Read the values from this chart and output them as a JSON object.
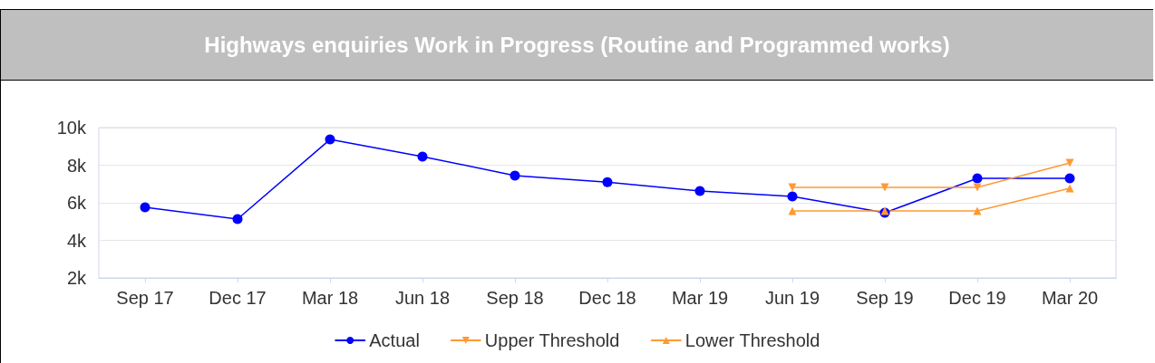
{
  "chart_data": {
    "type": "line",
    "title": "Highways enquiries Work in Progress (Routine and Programmed works)",
    "categories": [
      "Sep 17",
      "Dec 17",
      "Mar 18",
      "Jun 18",
      "Sep 18",
      "Dec 18",
      "Mar 19",
      "Jun 19",
      "Sep 19",
      "Dec 19",
      "Mar 20"
    ],
    "series": [
      {
        "name": "Actual",
        "color": "#0000ff",
        "marker": "circle",
        "values": [
          5760,
          5130,
          9370,
          8460,
          7450,
          7100,
          6630,
          6340,
          5470,
          7300,
          7300
        ]
      },
      {
        "name": "Upper Threshold",
        "color": "#ff9933",
        "marker": "triangle-down",
        "values": [
          null,
          null,
          null,
          null,
          null,
          null,
          null,
          6820,
          6820,
          6820,
          8120
        ]
      },
      {
        "name": "Lower Threshold",
        "color": "#ff9933",
        "marker": "triangle",
        "values": [
          null,
          null,
          null,
          null,
          null,
          null,
          null,
          5570,
          5570,
          5570,
          6770
        ]
      }
    ],
    "ylim": [
      2000,
      10000
    ],
    "yticks": [
      {
        "value": 2000,
        "label": "2k"
      },
      {
        "value": 4000,
        "label": "4k"
      },
      {
        "value": 6000,
        "label": "6k"
      },
      {
        "value": 8000,
        "label": "8k"
      },
      {
        "value": 10000,
        "label": "10k"
      }
    ],
    "grid": "y",
    "legend": "bottom",
    "line_style": "solid"
  }
}
